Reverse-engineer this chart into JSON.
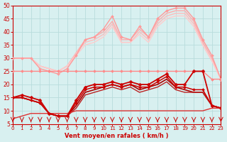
{
  "xlabel": "Vent moyen/en rafales ( km/h )",
  "background_color": "#d8f0f0",
  "grid_color": "#b8dcdc",
  "text_color": "#cc0000",
  "ylim": [
    5,
    50
  ],
  "xlim": [
    0,
    23
  ],
  "yticks": [
    5,
    10,
    15,
    20,
    25,
    30,
    35,
    40,
    45,
    50
  ],
  "xticks": [
    0,
    1,
    2,
    3,
    4,
    5,
    6,
    7,
    8,
    9,
    10,
    11,
    12,
    13,
    14,
    15,
    16,
    17,
    18,
    19,
    20,
    21,
    22,
    23
  ],
  "series": [
    {
      "x": [
        0,
        1,
        2,
        3,
        4,
        5,
        6,
        7,
        8,
        9,
        10,
        11,
        12,
        13,
        14,
        15,
        16,
        17,
        18,
        19,
        20,
        21,
        22,
        23
      ],
      "y": [
        30,
        30,
        30,
        26,
        25,
        24,
        26,
        31,
        37,
        38,
        41,
        46,
        38,
        37,
        42,
        38,
        45,
        48,
        49,
        49,
        45,
        37,
        31,
        22
      ],
      "color": "#ff9999",
      "lw": 1.0,
      "marker": "D",
      "ms": 2.0,
      "zorder": 3
    },
    {
      "x": [
        0,
        1,
        2,
        3,
        4,
        5,
        6,
        7,
        8,
        9,
        10,
        11,
        12,
        13,
        14,
        15,
        16,
        17,
        18,
        19,
        20,
        21,
        22,
        23
      ],
      "y": [
        30,
        30,
        30,
        27,
        26,
        25,
        27,
        32,
        37,
        38,
        40,
        44,
        37,
        37,
        41,
        38,
        44,
        47,
        48,
        48,
        44,
        36,
        30,
        22
      ],
      "color": "#ffaaaa",
      "lw": 1.0,
      "marker": null,
      "zorder": 2
    },
    {
      "x": [
        0,
        1,
        2,
        3,
        4,
        5,
        6,
        7,
        8,
        9,
        10,
        11,
        12,
        13,
        14,
        15,
        16,
        17,
        18,
        19,
        20,
        21,
        22,
        23
      ],
      "y": [
        30,
        30,
        30,
        27,
        26,
        25,
        27,
        32,
        36,
        37,
        39,
        43,
        36,
        36,
        40,
        37,
        43,
        46,
        47,
        47,
        43,
        35,
        29,
        22
      ],
      "color": "#ffbbbb",
      "lw": 1.0,
      "marker": null,
      "zorder": 2
    },
    {
      "x": [
        0,
        1,
        2,
        3,
        4,
        5,
        6,
        7,
        8,
        9,
        10,
        11,
        12,
        13,
        14,
        15,
        16,
        17,
        18,
        19,
        20,
        21,
        22,
        23
      ],
      "y": [
        30,
        30,
        30,
        27,
        26,
        25,
        27,
        31,
        35,
        36,
        38,
        42,
        36,
        36,
        39,
        36,
        42,
        45,
        46,
        46,
        42,
        35,
        29,
        22
      ],
      "color": "#ffcccc",
      "lw": 1.0,
      "marker": null,
      "zorder": 2
    },
    {
      "x": [
        0,
        1,
        2,
        3,
        4,
        5,
        6,
        7,
        8,
        9,
        10,
        11,
        12,
        13,
        14,
        15,
        16,
        17,
        18,
        19,
        20,
        21,
        22,
        23
      ],
      "y": [
        25,
        25,
        25,
        25,
        25,
        25,
        25,
        25,
        25,
        25,
        25,
        25,
        25,
        25,
        25,
        25,
        25,
        25,
        25,
        25,
        25,
        25,
        22,
        22
      ],
      "color": "#ff8888",
      "lw": 1.0,
      "marker": "D",
      "ms": 2.0,
      "zorder": 3
    },
    {
      "x": [
        0,
        1,
        2,
        3,
        4,
        5,
        6,
        7,
        8,
        9,
        10,
        11,
        12,
        13,
        14,
        15,
        16,
        17,
        18,
        19,
        20,
        21,
        22,
        23
      ],
      "y": [
        15,
        16,
        15,
        14,
        9,
        8,
        8,
        14,
        19,
        20,
        20,
        21,
        20,
        21,
        20,
        20,
        22,
        24,
        20,
        20,
        25,
        25,
        12,
        11
      ],
      "color": "#cc0000",
      "lw": 1.3,
      "marker": "D",
      "ms": 2.5,
      "zorder": 5
    },
    {
      "x": [
        0,
        1,
        2,
        3,
        4,
        5,
        6,
        7,
        8,
        9,
        10,
        11,
        12,
        13,
        14,
        15,
        16,
        17,
        18,
        19,
        20,
        21,
        22,
        23
      ],
      "y": [
        15,
        15,
        14,
        13,
        9,
        8,
        8,
        13,
        18,
        19,
        19,
        20,
        19,
        20,
        19,
        19,
        21,
        23,
        19,
        19,
        18,
        18,
        12,
        11
      ],
      "color": "#cc0000",
      "lw": 1.1,
      "marker": "D",
      "ms": 2.0,
      "zorder": 5
    },
    {
      "x": [
        0,
        1,
        2,
        3,
        4,
        5,
        6,
        7,
        8,
        9,
        10,
        11,
        12,
        13,
        14,
        15,
        16,
        17,
        18,
        19,
        20,
        21,
        22,
        23
      ],
      "y": [
        15,
        15,
        14,
        13,
        9,
        8,
        8,
        12,
        17,
        18,
        19,
        20,
        19,
        20,
        18,
        19,
        20,
        22,
        19,
        18,
        17,
        17,
        12,
        11
      ],
      "color": "#aa0000",
      "lw": 1.2,
      "marker": null,
      "zorder": 4
    },
    {
      "x": [
        0,
        1,
        2,
        3,
        4,
        5,
        6,
        7,
        8,
        9,
        10,
        11,
        12,
        13,
        14,
        15,
        16,
        17,
        18,
        19,
        20,
        21,
        22,
        23
      ],
      "y": [
        15,
        15,
        14,
        13,
        9,
        8,
        8,
        11,
        16,
        17,
        18,
        19,
        18,
        19,
        17,
        18,
        19,
        21,
        18,
        17,
        17,
        17,
        12,
        11
      ],
      "color": "#bb2222",
      "lw": 1.0,
      "marker": null,
      "zorder": 4
    },
    {
      "x": [
        0,
        1,
        2,
        3,
        4,
        5,
        6,
        7,
        8,
        9,
        10,
        11,
        12,
        13,
        14,
        15,
        16,
        17,
        18,
        19,
        20,
        21,
        22,
        23
      ],
      "y": [
        7,
        8,
        9,
        9,
        9,
        9,
        9,
        10,
        10,
        10,
        10,
        10,
        10,
        10,
        10,
        10,
        10,
        10,
        10,
        10,
        10,
        10,
        11,
        11
      ],
      "color": "#dd3333",
      "lw": 1.0,
      "marker": null,
      "zorder": 4
    }
  ],
  "arrow_color": "#cc0000"
}
